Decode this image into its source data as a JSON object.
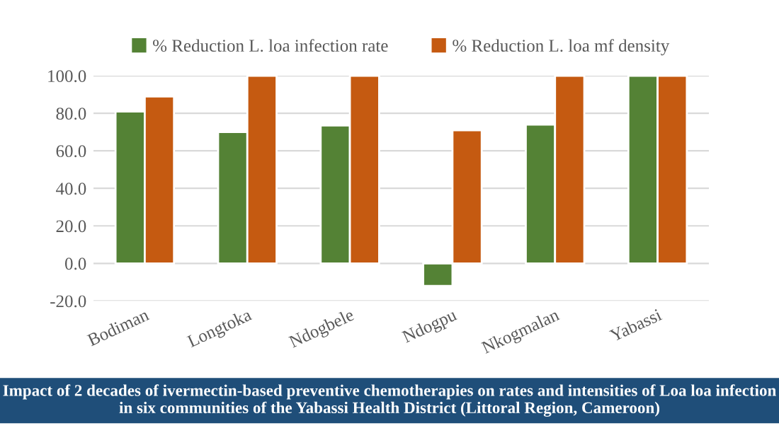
{
  "chart_data": {
    "type": "bar",
    "categories": [
      "Bodiman",
      "Longtoka",
      "Ndogbele",
      "Ndogpu",
      "Nkogmalan",
      "Yabassi"
    ],
    "series": [
      {
        "name": "% Reduction L. loa infection rate",
        "color": "#548235",
        "values": [
          81,
          70,
          73.5,
          -12,
          74,
          100
        ]
      },
      {
        "name": "% Reduction L. loa mf density",
        "color": "#c55a11",
        "values": [
          89,
          100,
          100,
          71,
          100,
          100
        ]
      }
    ],
    "ylim": [
      -20,
      100
    ],
    "yticks": [
      {
        "value": -20,
        "label": "-20.0"
      },
      {
        "value": 0,
        "label": "0.0"
      },
      {
        "value": 20,
        "label": "20.0"
      },
      {
        "value": 40,
        "label": "40.0"
      },
      {
        "value": 60,
        "label": "60.0"
      },
      {
        "value": 80,
        "label": "80.0"
      },
      {
        "value": 100,
        "label": "100.0"
      }
    ],
    "grid": "y",
    "legend": "top",
    "annotations": [
      "Impact of 2 decades of ivermectin-based preventive chemotherapies on rates and intensities of Loa loa infection in six communities of the Yabassi Health District (Littoral Region, Cameroon)"
    ]
  }
}
